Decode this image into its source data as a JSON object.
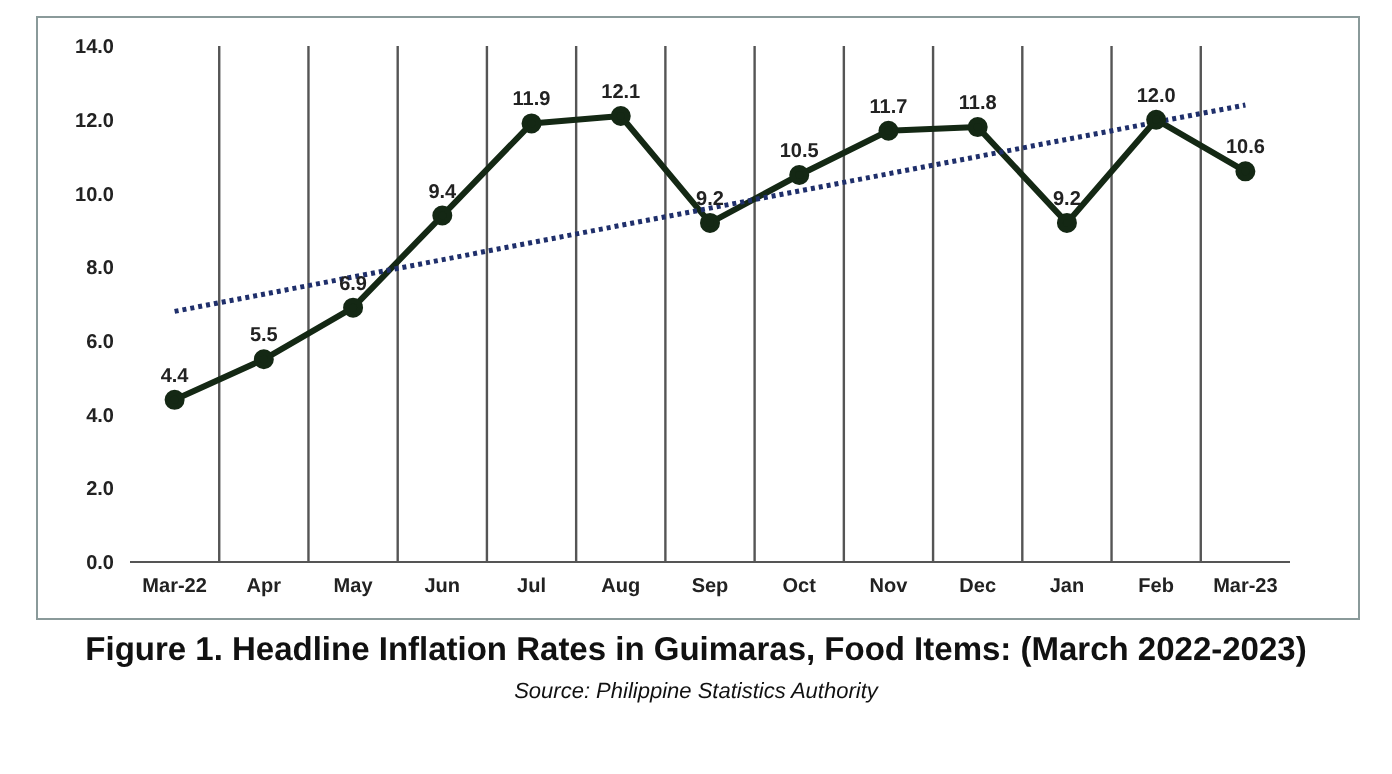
{
  "chart_data": {
    "type": "line",
    "title": "Figure 1. Headline Inflation Rates in Guimaras, Food Items: (March 2022-2023)",
    "annotations": [
      "Source: Philippine Statistics Authority"
    ],
    "categories": [
      "Mar-22",
      "Apr",
      "May",
      "Jun",
      "Jul",
      "Aug",
      "Sep",
      "Oct",
      "Nov",
      "Dec",
      "Jan",
      "Feb",
      "Mar-23"
    ],
    "series": [
      {
        "color": "#142814",
        "values": [
          4.4,
          5.5,
          6.9,
          9.4,
          11.9,
          12.1,
          9.2,
          10.5,
          11.7,
          11.8,
          9.2,
          12.0,
          10.6
        ],
        "value_labels": [
          "4.4",
          "5.5",
          "6.9",
          "9.4",
          "11.9",
          "12.1",
          "9.2",
          "10.5",
          "11.7",
          "11.8",
          "9.2",
          "12.0",
          "10.6"
        ],
        "marker": "circle",
        "line_style": "solid"
      },
      {
        "type": "line",
        "color": "#1f2f6b",
        "x": [
          "Mar-22",
          "Mar-23"
        ],
        "values": [
          6.8,
          12.4
        ],
        "marker": "none",
        "line_style": "dotted"
      }
    ],
    "ylim": [
      0,
      14
    ],
    "yticks": [
      {
        "value": 0,
        "label": "0.0"
      },
      {
        "value": 2,
        "label": "2.0"
      },
      {
        "value": 4,
        "label": "4.0"
      },
      {
        "value": 6,
        "label": "6.0"
      },
      {
        "value": 8,
        "label": "8.0"
      },
      {
        "value": 10,
        "label": "10.0"
      },
      {
        "value": 12,
        "label": "12.0"
      },
      {
        "value": 14,
        "label": "14.0"
      }
    ],
    "grid": "x"
  }
}
